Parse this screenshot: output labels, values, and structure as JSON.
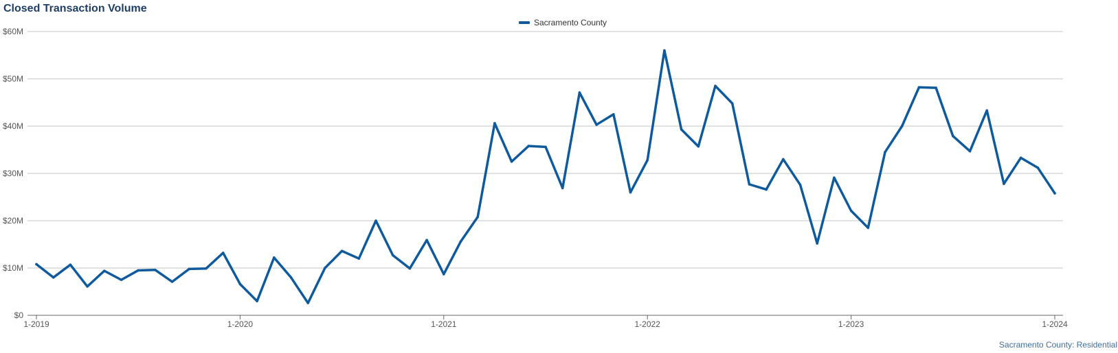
{
  "chart_data": {
    "type": "line",
    "title": "Closed Transaction Volume",
    "footer": "Sacramento County: Residential",
    "legend_position": "top-center",
    "grid": true,
    "ylim": [
      0,
      60000000
    ],
    "y_ticks": [
      0,
      10000000,
      20000000,
      30000000,
      40000000,
      50000000,
      60000000
    ],
    "y_tick_labels": [
      "$0",
      "$10M",
      "$20M",
      "$30M",
      "$40M",
      "$50M",
      "$60M"
    ],
    "x_tick_labels": [
      "1-2019",
      "1-2020",
      "1-2021",
      "1-2022",
      "1-2023",
      "1-2024"
    ],
    "x_tick_index": [
      0,
      12,
      24,
      36,
      48,
      60
    ],
    "series_color": "#0e5a9c",
    "series": [
      {
        "name": "Sacramento County",
        "x": [
          "1-2019",
          "2-2019",
          "3-2019",
          "4-2019",
          "5-2019",
          "6-2019",
          "7-2019",
          "8-2019",
          "9-2019",
          "10-2019",
          "11-2019",
          "12-2019",
          "1-2020",
          "2-2020",
          "3-2020",
          "4-2020",
          "5-2020",
          "6-2020",
          "7-2020",
          "8-2020",
          "9-2020",
          "10-2020",
          "11-2020",
          "12-2020",
          "1-2021",
          "2-2021",
          "3-2021",
          "4-2021",
          "5-2021",
          "6-2021",
          "7-2021",
          "8-2021",
          "9-2021",
          "10-2021",
          "11-2021",
          "12-2021",
          "1-2022",
          "2-2022",
          "3-2022",
          "4-2022",
          "5-2022",
          "6-2022",
          "7-2022",
          "8-2022",
          "9-2022",
          "10-2022",
          "11-2022",
          "12-2022",
          "1-2023",
          "2-2023",
          "3-2023",
          "4-2023",
          "5-2023",
          "6-2023",
          "7-2023",
          "8-2023",
          "9-2023",
          "10-2023",
          "11-2023",
          "12-2023",
          "1-2024"
        ],
        "values": [
          10800000,
          8000000,
          10700000,
          6100000,
          9400000,
          7500000,
          9500000,
          9600000,
          7100000,
          9800000,
          9900000,
          13200000,
          6600000,
          3000000,
          12200000,
          8000000,
          2600000,
          10000000,
          13600000,
          12000000,
          20000000,
          12700000,
          9900000,
          15900000,
          8700000,
          15600000,
          20800000,
          40600000,
          32500000,
          35800000,
          35600000,
          26900000,
          47100000,
          40300000,
          42500000,
          26000000,
          32800000,
          56000000,
          39300000,
          35700000,
          48500000,
          44800000,
          27700000,
          26600000,
          33000000,
          27600000,
          15200000,
          29100000,
          22100000,
          18500000,
          34500000,
          40000000,
          48200000,
          48100000,
          37900000,
          34700000,
          43300000,
          27800000,
          33300000,
          31200000,
          25800000
        ]
      }
    ]
  }
}
